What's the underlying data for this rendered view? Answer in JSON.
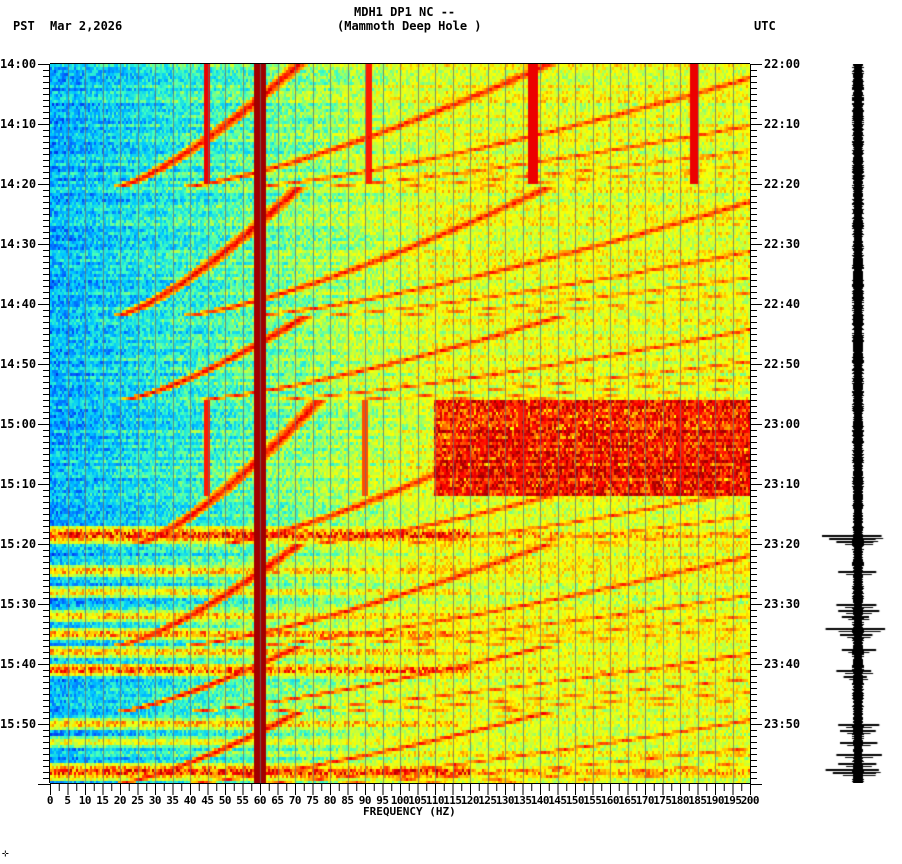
{
  "header": {
    "station": "MDH1 DP1 NC --",
    "location": "(Mammoth Deep Hole )",
    "left_tz": "PST",
    "date": "Mar 2,2026",
    "right_tz": "UTC",
    "footer_mark": "⊹"
  },
  "chart_data": {
    "type": "heatmap",
    "title": "MDH1 DP1 NC -- (Mammoth Deep Hole )",
    "subtitle": "Mar 2,2026",
    "xlabel": "FREQUENCY (HZ)",
    "ylabel_left": "PST",
    "ylabel_right": "UTC",
    "xlim": [
      0,
      200
    ],
    "x_ticks": [
      0,
      5,
      10,
      15,
      20,
      25,
      30,
      35,
      40,
      45,
      50,
      55,
      60,
      65,
      70,
      75,
      80,
      85,
      90,
      95,
      100,
      105,
      110,
      115,
      120,
      125,
      130,
      135,
      140,
      145,
      150,
      155,
      160,
      165,
      170,
      175,
      180,
      185,
      190,
      195,
      200
    ],
    "y_ticks_pst": [
      "14:00",
      "14:10",
      "14:20",
      "14:30",
      "14:40",
      "14:50",
      "15:00",
      "15:10",
      "15:20",
      "15:30",
      "15:40",
      "15:50"
    ],
    "y_ticks_utc": [
      "22:00",
      "22:10",
      "22:20",
      "22:30",
      "22:40",
      "22:50",
      "23:00",
      "23:10",
      "23:20",
      "23:30",
      "23:40",
      "23:50"
    ],
    "time_range_pst": [
      "14:00",
      "16:00"
    ],
    "colormap": [
      "#0000c8",
      "#0060ff",
      "#00c8ff",
      "#40ffc0",
      "#c0ff40",
      "#ffff00",
      "#ff8000",
      "#ff0000",
      "#a00000"
    ],
    "gridlines_every_hz": 5,
    "persistent_lines_hz": [
      {
        "freq": 60,
        "intensity": 1.0,
        "width_hz": 1.6
      },
      {
        "freq": 45,
        "intensity": 0.9,
        "from_min": 0,
        "to_min": 20,
        "width_hz": 0.8
      },
      {
        "freq": 91,
        "intensity": 0.85,
        "from_min": 0,
        "to_min": 20,
        "width_hz": 0.8
      },
      {
        "freq": 138,
        "intensity": 0.9,
        "from_min": 0,
        "to_min": 20,
        "width_hz": 1.2
      },
      {
        "freq": 184,
        "intensity": 0.9,
        "from_min": 0,
        "to_min": 20,
        "width_hz": 1.2
      },
      {
        "freq": 45,
        "intensity": 0.85,
        "from_min": 56,
        "to_min": 72,
        "width_hz": 0.8
      },
      {
        "freq": 90,
        "intensity": 0.8,
        "from_min": 56,
        "to_min": 72,
        "width_hz": 0.8
      },
      {
        "freq": 135,
        "intensity": 0.85,
        "from_min": 56,
        "to_min": 72,
        "width_hz": 1.2
      },
      {
        "freq": 180,
        "intensity": 0.85,
        "from_min": 56,
        "to_min": 72,
        "width_hz": 1.2
      }
    ],
    "chirp_cycles_min": [
      {
        "start": 0,
        "end": 20.5,
        "base_hz": 20
      },
      {
        "start": 20.5,
        "end": 42,
        "base_hz": 20
      },
      {
        "start": 42,
        "end": 56,
        "base_hz": 22
      },
      {
        "start": 56,
        "end": 80,
        "base_hz": 26
      },
      {
        "start": 80,
        "end": 97,
        "base_hz": 20
      },
      {
        "start": 97,
        "end": 108,
        "base_hz": 20
      },
      {
        "start": 108,
        "end": 120,
        "base_hz": 20
      }
    ],
    "chirp_harmonics": 6,
    "broadband_bursts_min": [
      {
        "at": 78.5,
        "width": 1.4,
        "intensity": 1.0
      },
      {
        "at": 84.5,
        "width": 0.9,
        "intensity": 0.85
      },
      {
        "at": 88,
        "width": 0.9,
        "intensity": 0.8
      },
      {
        "at": 92,
        "width": 0.9,
        "intensity": 0.85
      },
      {
        "at": 95,
        "width": 0.9,
        "intensity": 0.9
      },
      {
        "at": 98,
        "width": 0.9,
        "intensity": 0.85
      },
      {
        "at": 101,
        "width": 1.2,
        "intensity": 0.95
      },
      {
        "at": 110,
        "width": 0.9,
        "intensity": 0.85
      },
      {
        "at": 113,
        "width": 0.8,
        "intensity": 0.75
      },
      {
        "at": 118,
        "width": 1.4,
        "intensity": 1.0
      }
    ],
    "elevated_regions": [
      {
        "from_min": 56,
        "to_min": 72,
        "from_hz": 110,
        "to_hz": 200,
        "boost": 0.25
      }
    ]
  },
  "seismogram": {
    "label": "seismogram-trace",
    "spikes_min": [
      {
        "at": 78.5,
        "amp": 1.0
      },
      {
        "at": 79,
        "amp": 0.8
      },
      {
        "at": 79.5,
        "amp": 0.6
      },
      {
        "at": 84.5,
        "amp": 0.55
      },
      {
        "at": 90,
        "amp": 0.6
      },
      {
        "at": 91,
        "amp": 0.55
      },
      {
        "at": 92,
        "amp": 0.45
      },
      {
        "at": 94,
        "amp": 0.9
      },
      {
        "at": 95,
        "amp": 0.5
      },
      {
        "at": 97.5,
        "amp": 0.45
      },
      {
        "at": 101,
        "amp": 0.6
      },
      {
        "at": 102,
        "amp": 0.4
      },
      {
        "at": 110,
        "amp": 0.55
      },
      {
        "at": 111,
        "amp": 0.5
      },
      {
        "at": 113,
        "amp": 0.5
      },
      {
        "at": 115,
        "amp": 0.6
      },
      {
        "at": 116.5,
        "amp": 0.55
      },
      {
        "at": 117.5,
        "amp": 0.9
      },
      {
        "at": 118,
        "amp": 0.7
      },
      {
        "at": 18.5,
        "amp": 0.15
      }
    ]
  }
}
